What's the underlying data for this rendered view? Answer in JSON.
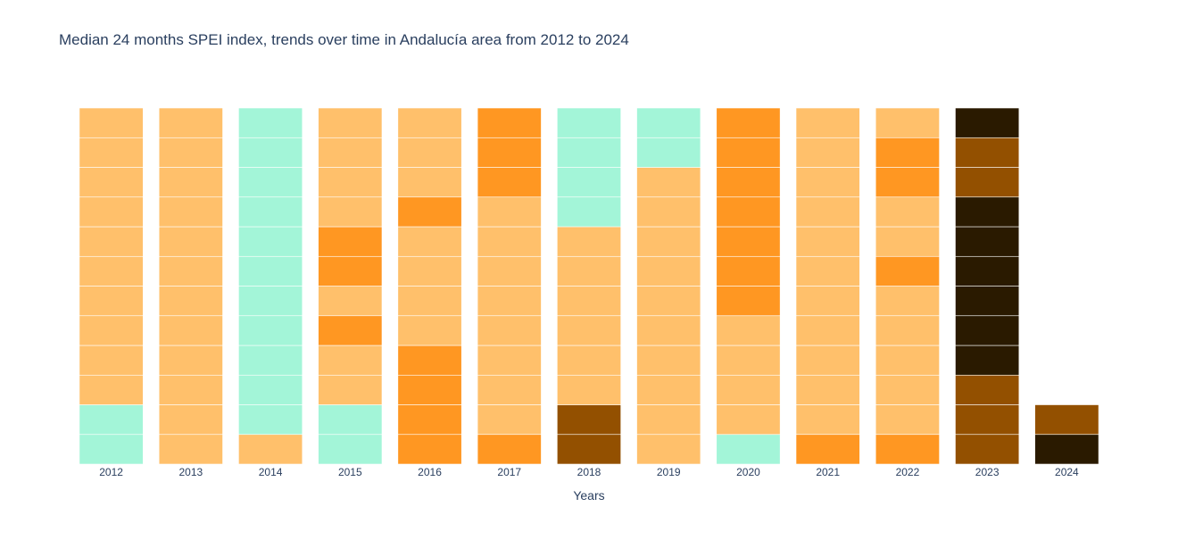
{
  "chart_data": {
    "type": "bar",
    "title": "Median 24 months SPEI index, trends over time in Andalucía area from 2012 to 2024",
    "xlabel": "Years",
    "ylabel": "",
    "stacked": true,
    "y_axis_visible": false,
    "grid": false,
    "categories": [
      "2012",
      "2013",
      "2014",
      "2015",
      "2016",
      "2017",
      "2018",
      "2019",
      "2020",
      "2021",
      "2022",
      "2023",
      "2024"
    ],
    "segment_unit": "month",
    "color_classes": {
      "near_normal_wet": "#a3f5d8",
      "moderately_dry": "#ffc06b",
      "severely_dry": "#ff9722",
      "extremely_dry": "#935000",
      "exceptionally_dry": "#2a1a00"
    },
    "months_bottom_to_top": {
      "2012": [
        "near_normal_wet",
        "near_normal_wet",
        "moderately_dry",
        "moderately_dry",
        "moderately_dry",
        "moderately_dry",
        "moderately_dry",
        "moderately_dry",
        "moderately_dry",
        "moderately_dry",
        "moderately_dry",
        "moderately_dry"
      ],
      "2013": [
        "moderately_dry",
        "moderately_dry",
        "moderately_dry",
        "moderately_dry",
        "moderately_dry",
        "moderately_dry",
        "moderately_dry",
        "moderately_dry",
        "moderately_dry",
        "moderately_dry",
        "moderately_dry",
        "moderately_dry"
      ],
      "2014": [
        "moderately_dry",
        "near_normal_wet",
        "near_normal_wet",
        "near_normal_wet",
        "near_normal_wet",
        "near_normal_wet",
        "near_normal_wet",
        "near_normal_wet",
        "near_normal_wet",
        "near_normal_wet",
        "near_normal_wet",
        "near_normal_wet"
      ],
      "2015": [
        "near_normal_wet",
        "near_normal_wet",
        "moderately_dry",
        "moderately_dry",
        "severely_dry",
        "moderately_dry",
        "severely_dry",
        "severely_dry",
        "moderately_dry",
        "moderately_dry",
        "moderately_dry",
        "moderately_dry"
      ],
      "2016": [
        "severely_dry",
        "severely_dry",
        "severely_dry",
        "severely_dry",
        "moderately_dry",
        "moderately_dry",
        "moderately_dry",
        "moderately_dry",
        "severely_dry",
        "moderately_dry",
        "moderately_dry",
        "moderately_dry"
      ],
      "2017": [
        "severely_dry",
        "moderately_dry",
        "moderately_dry",
        "moderately_dry",
        "moderately_dry",
        "moderately_dry",
        "moderately_dry",
        "moderately_dry",
        "moderately_dry",
        "severely_dry",
        "severely_dry",
        "severely_dry"
      ],
      "2018": [
        "extremely_dry",
        "extremely_dry",
        "moderately_dry",
        "moderately_dry",
        "moderately_dry",
        "moderately_dry",
        "moderately_dry",
        "moderately_dry",
        "near_normal_wet",
        "near_normal_wet",
        "near_normal_wet",
        "near_normal_wet"
      ],
      "2019": [
        "moderately_dry",
        "moderately_dry",
        "moderately_dry",
        "moderately_dry",
        "moderately_dry",
        "moderately_dry",
        "moderately_dry",
        "moderately_dry",
        "moderately_dry",
        "moderately_dry",
        "near_normal_wet",
        "near_normal_wet"
      ],
      "2020": [
        "near_normal_wet",
        "moderately_dry",
        "moderately_dry",
        "moderately_dry",
        "moderately_dry",
        "severely_dry",
        "severely_dry",
        "severely_dry",
        "severely_dry",
        "severely_dry",
        "severely_dry",
        "severely_dry"
      ],
      "2021": [
        "severely_dry",
        "moderately_dry",
        "moderately_dry",
        "moderately_dry",
        "moderately_dry",
        "moderately_dry",
        "moderately_dry",
        "moderately_dry",
        "moderately_dry",
        "moderately_dry",
        "moderately_dry",
        "moderately_dry"
      ],
      "2022": [
        "severely_dry",
        "moderately_dry",
        "moderately_dry",
        "moderately_dry",
        "moderately_dry",
        "moderately_dry",
        "severely_dry",
        "moderately_dry",
        "moderately_dry",
        "severely_dry",
        "severely_dry",
        "moderately_dry"
      ],
      "2023": [
        "extremely_dry",
        "extremely_dry",
        "extremely_dry",
        "exceptionally_dry",
        "exceptionally_dry",
        "exceptionally_dry",
        "exceptionally_dry",
        "exceptionally_dry",
        "exceptionally_dry",
        "extremely_dry",
        "extremely_dry",
        "exceptionally_dry"
      ],
      "2024": [
        "exceptionally_dry",
        "extremely_dry"
      ]
    }
  }
}
